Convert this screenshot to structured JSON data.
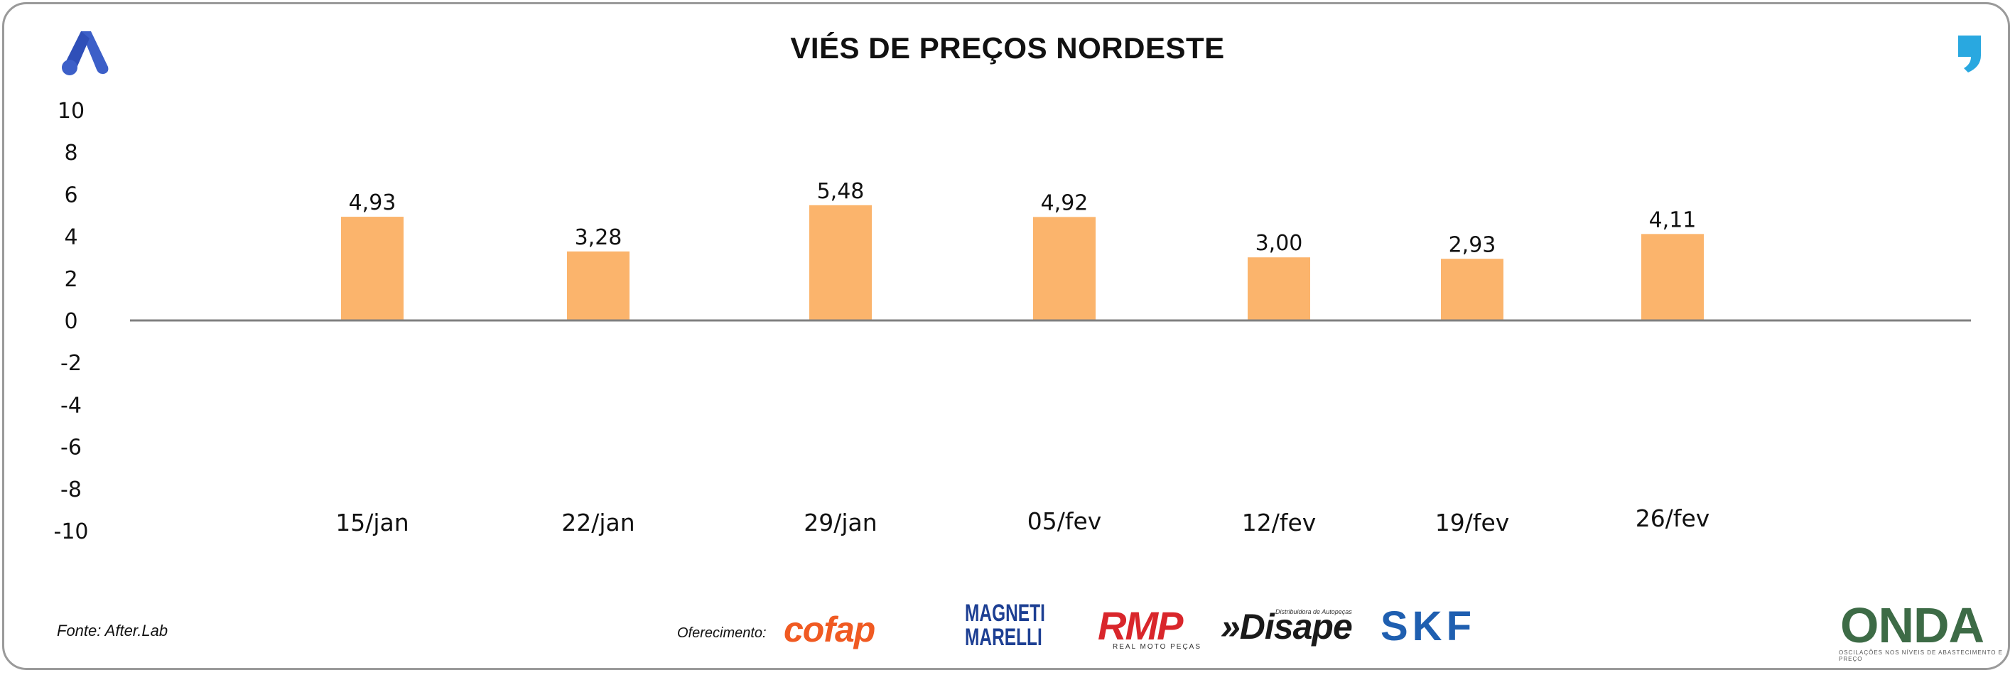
{
  "title": "VIÉS DE PREÇOS NORDESTE",
  "footer": {
    "source": "Fonte: After.Lab",
    "sponsor_label": "Oferecimento:",
    "sponsors": {
      "cofap": "cofap",
      "magneti": "MAGNETI MARELLI",
      "rmp": "RMP",
      "rmp_sub": "REAL MOTO PEÇAS",
      "disape": "»Disape",
      "disape_sub": "Distribuidora de Autopeças",
      "skf": "SKF",
      "onda": "ONDA",
      "onda_sub": "OSCILAÇÕES NOS NÍVEIS DE ABASTECIMENTO E PREÇO"
    }
  },
  "icons": {
    "top_left": "afterlab-a-logo-icon",
    "top_right": "quote-mark-icon"
  },
  "colors": {
    "bar": "#fbb46c",
    "axis": "#808080",
    "brand_blue": "#3c5fc8",
    "quote_blue": "#29a8e0"
  },
  "chart_data": {
    "type": "bar",
    "title": "VIÉS DE PREÇOS NORDESTE",
    "categories": [
      "15/jan",
      "22/jan",
      "29/jan",
      "05/fev",
      "12/fev",
      "19/fev",
      "26/fev"
    ],
    "values": [
      4.93,
      3.28,
      5.48,
      4.92,
      3.0,
      2.93,
      4.11
    ],
    "data_labels": [
      "4,93",
      "3,28",
      "5,48",
      "4,92",
      "3,00",
      "2,93",
      "4,11"
    ],
    "ylim": [
      -10,
      10
    ],
    "yticks": [
      10,
      8,
      6,
      4,
      2,
      0,
      -2,
      -4,
      -6,
      -8,
      -10
    ],
    "grid": false,
    "legend": "none"
  }
}
